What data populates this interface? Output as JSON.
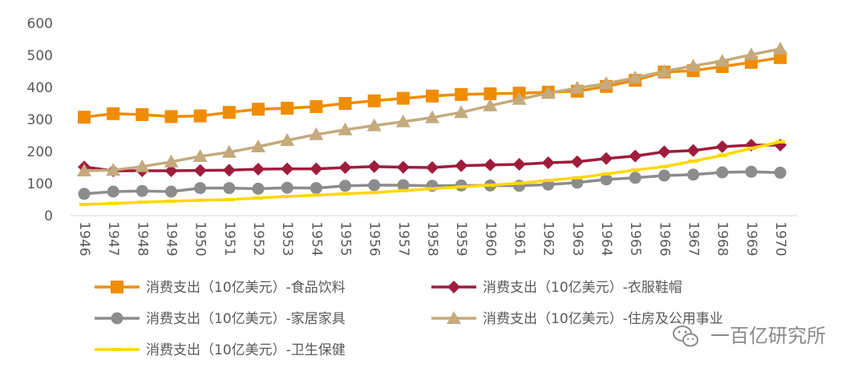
{
  "chart_data": {
    "type": "line",
    "x": [
      "1946",
      "1947",
      "1948",
      "1949",
      "1950",
      "1951",
      "1952",
      "1953",
      "1954",
      "1955",
      "1956",
      "1957",
      "1958",
      "1959",
      "1960",
      "1961",
      "1962",
      "1963",
      "1964",
      "1965",
      "1966",
      "1967",
      "1968",
      "1969",
      "1970"
    ],
    "ylim": [
      0,
      600
    ],
    "yticks": [
      0,
      100,
      200,
      300,
      400,
      500,
      600
    ],
    "grid": false,
    "legend_position": "bottom",
    "series": [
      {
        "name": "消费支出（10亿美元）-食品饮料",
        "color": "#f08c00",
        "marker": "square",
        "values": [
          307,
          318,
          315,
          309,
          311,
          322,
          332,
          335,
          340,
          350,
          358,
          366,
          373,
          378,
          380,
          382,
          385,
          388,
          403,
          422,
          448,
          452,
          465,
          478,
          493
        ]
      },
      {
        "name": "消费支出（10亿美元）-衣服鞋帽",
        "color": "#a01c3c",
        "marker": "diamond",
        "values": [
          152,
          140,
          140,
          140,
          141,
          142,
          145,
          146,
          146,
          150,
          153,
          151,
          150,
          156,
          158,
          160,
          165,
          168,
          178,
          186,
          199,
          203,
          215,
          220,
          220
        ]
      },
      {
        "name": "消费支出（10亿美元）-家居家具",
        "color": "#8c8c8c",
        "marker": "circle",
        "values": [
          68,
          75,
          77,
          75,
          86,
          86,
          84,
          87,
          86,
          93,
          95,
          95,
          93,
          94,
          94,
          93,
          97,
          103,
          113,
          118,
          125,
          128,
          135,
          137,
          134
        ]
      },
      {
        "name": "消费支出（10亿美元）-住房及公用事业",
        "color": "#c4aa7c",
        "marker": "triangle",
        "values": [
          140,
          142,
          153,
          168,
          185,
          198,
          215,
          235,
          253,
          268,
          281,
          293,
          306,
          322,
          343,
          363,
          382,
          398,
          412,
          430,
          450,
          467,
          482,
          502,
          520
        ]
      },
      {
        "name": "消费支出（10亿美元）-卫生保健",
        "color": "#ffd700",
        "marker": "dash",
        "values": [
          35,
          38,
          42,
          45,
          48,
          50,
          55,
          60,
          64,
          68,
          72,
          78,
          84,
          90,
          95,
          101,
          110,
          118,
          130,
          142,
          153,
          170,
          188,
          210,
          230
        ]
      }
    ]
  },
  "watermark": {
    "icon": "wechat-icon",
    "text": "一百亿研究所"
  }
}
